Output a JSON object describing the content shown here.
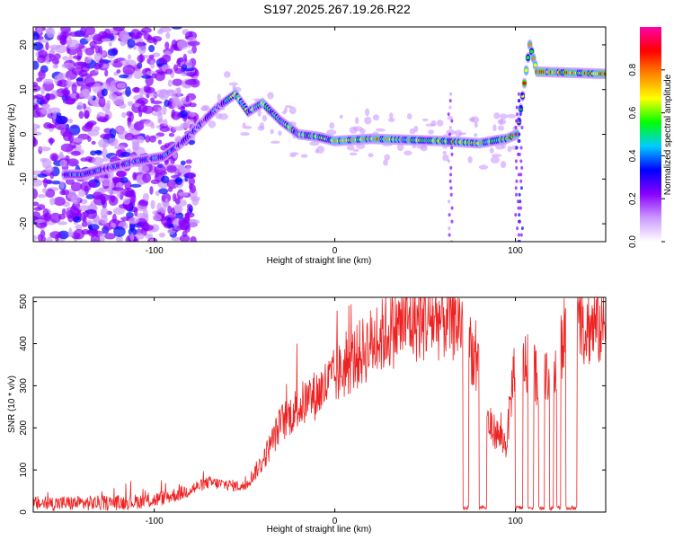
{
  "title": "S197.2025.267.19.26.R22",
  "chart_data": [
    {
      "type": "heatmap",
      "xlabel": "Height of straight line (km)",
      "ylabel": "Frequency (Hz)",
      "xlim": [
        -167,
        150
      ],
      "ylim": [
        -24,
        24
      ],
      "xticks": [
        -100,
        0,
        100
      ],
      "yticks": [
        -20,
        -10,
        0,
        10,
        20
      ],
      "colorbar": {
        "label": "Normalized spectral amplitude",
        "range": [
          0.0,
          1.0
        ],
        "ticks": [
          "0.0",
          "0.2",
          "0.4",
          "0.6",
          "0.8"
        ],
        "colors": [
          "#ffffff",
          "#cc99ff",
          "#8800ff",
          "#0000ff",
          "#00ccff",
          "#00ff00",
          "#ffff00",
          "#ff8800",
          "#ff0000",
          "#ff00aa"
        ]
      },
      "ridge": [
        {
          "x": -140,
          "y": -9
        },
        {
          "x": -110,
          "y": -6
        },
        {
          "x": -95,
          "y": -5
        },
        {
          "x": -85,
          "y": -2
        },
        {
          "x": -75,
          "y": 2
        },
        {
          "x": -65,
          "y": 6
        },
        {
          "x": -55,
          "y": 9
        },
        {
          "x": -48,
          "y": 5
        },
        {
          "x": -40,
          "y": 7
        },
        {
          "x": -30,
          "y": 3
        },
        {
          "x": -20,
          "y": 0
        },
        {
          "x": -10,
          "y": -0.5
        },
        {
          "x": 0,
          "y": -1.5
        },
        {
          "x": 20,
          "y": -1
        },
        {
          "x": 60,
          "y": -1.5
        },
        {
          "x": 80,
          "y": -2
        },
        {
          "x": 95,
          "y": -1
        },
        {
          "x": 101,
          "y": 0
        },
        {
          "x": 108,
          "y": 20
        },
        {
          "x": 112,
          "y": 14
        },
        {
          "x": 150,
          "y": 13.5
        }
      ]
    },
    {
      "type": "line",
      "xlabel": "Height of straight line (km)",
      "ylabel": "SNR (10 * v/v)",
      "xlim": [
        -167,
        150
      ],
      "ylim": [
        0,
        510
      ],
      "xticks": [
        -100,
        0,
        100
      ],
      "yticks": [
        0,
        100,
        200,
        300,
        400,
        500
      ],
      "series_color": "#ee2222",
      "envelope": [
        {
          "x": -167,
          "y": 20
        },
        {
          "x": -120,
          "y": 22
        },
        {
          "x": -100,
          "y": 28
        },
        {
          "x": -85,
          "y": 45
        },
        {
          "x": -70,
          "y": 70
        },
        {
          "x": -50,
          "y": 60
        },
        {
          "x": -40,
          "y": 120
        },
        {
          "x": -30,
          "y": 210
        },
        {
          "x": -20,
          "y": 250
        },
        {
          "x": -10,
          "y": 280
        },
        {
          "x": 0,
          "y": 320
        },
        {
          "x": 10,
          "y": 360
        },
        {
          "x": 20,
          "y": 400
        },
        {
          "x": 30,
          "y": 430
        },
        {
          "x": 40,
          "y": 450
        },
        {
          "x": 60,
          "y": 460
        },
        {
          "x": 72,
          "y": 450
        },
        {
          "x": 80,
          "y": 320
        },
        {
          "x": 85,
          "y": 210
        },
        {
          "x": 95,
          "y": 160
        },
        {
          "x": 100,
          "y": 380
        },
        {
          "x": 110,
          "y": 330
        },
        {
          "x": 120,
          "y": 300
        },
        {
          "x": 130,
          "y": 430
        },
        {
          "x": 140,
          "y": 440
        },
        {
          "x": 150,
          "y": 440
        }
      ],
      "dropouts": [
        [
          71,
          74
        ],
        [
          80,
          84
        ],
        [
          100,
          104
        ],
        [
          107,
          110
        ],
        [
          113,
          116
        ],
        [
          119,
          121
        ],
        [
          123,
          125
        ],
        [
          128,
          134
        ]
      ]
    }
  ]
}
